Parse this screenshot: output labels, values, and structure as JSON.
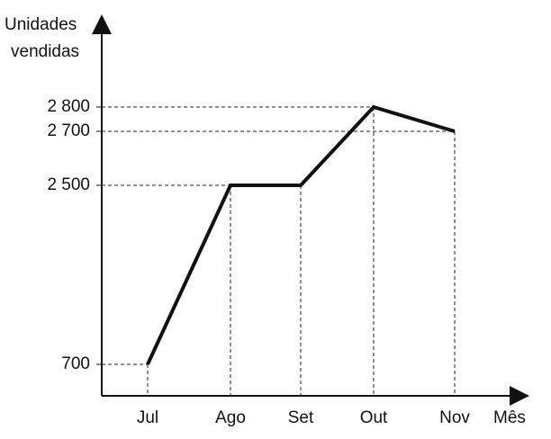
{
  "chart_data": {
    "type": "line",
    "y_label": [
      "Unidades",
      "vendidas"
    ],
    "x_label": "Mês",
    "categories": [
      "Jul",
      "Ago",
      "Set",
      "Out",
      "Nov"
    ],
    "values": [
      700,
      2500,
      2500,
      2800,
      2700
    ],
    "color": "#111111",
    "yticks": [
      700,
      {
        "value": 2500,
        "label": "2 500"
      },
      {
        "value": 2700,
        "label": "2 700"
      },
      {
        "value": 2800,
        "label": "2 800"
      }
    ],
    "guides": true
  }
}
